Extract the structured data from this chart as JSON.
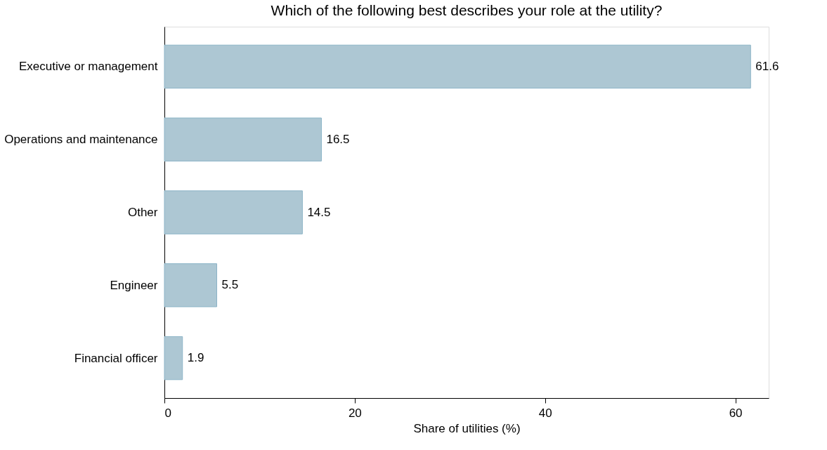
{
  "chart_data": {
    "type": "bar",
    "orientation": "horizontal",
    "title": "Which of the following best describes your role at the utility?",
    "xlabel": "Share of utilities (%)",
    "categories": [
      "Executive or management",
      "Operations and maintenance",
      "Other",
      "Engineer",
      "Financial officer"
    ],
    "values": [
      61.6,
      16.5,
      14.5,
      5.5,
      1.9
    ],
    "color": "#adc7d3",
    "xlim": [
      0,
      63.5
    ],
    "xticks": [
      0,
      20,
      40,
      60
    ],
    "data_labels": true,
    "grid": false
  }
}
